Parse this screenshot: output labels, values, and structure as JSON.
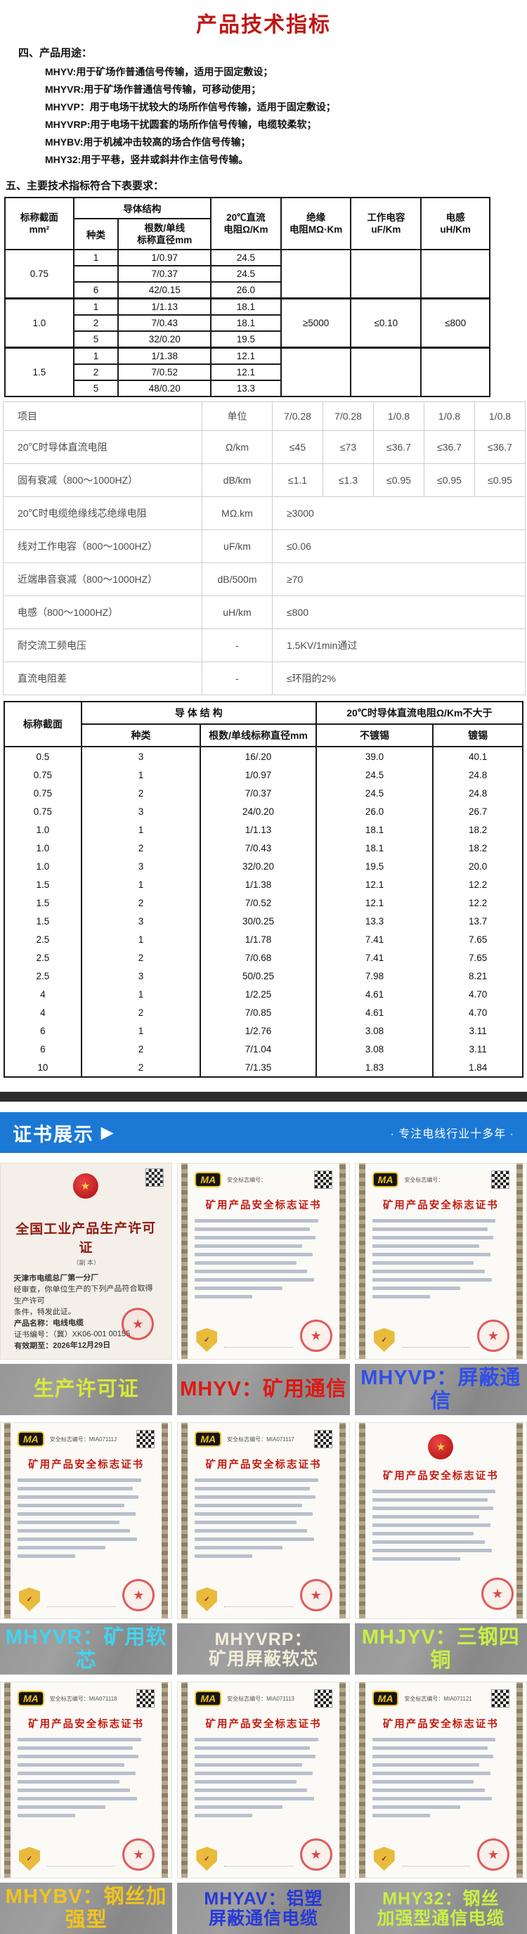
{
  "colors": {
    "title_red": "#c01715",
    "banner_blue": "#1b79d5",
    "dark_bar": "#2d2d2d",
    "caption_bar_gray": "#8f8f8f"
  },
  "header": {
    "title": "产品技术指标"
  },
  "usage": {
    "label": "四、产品用途：",
    "items": [
      "MHYV:用于矿场作普通信号传输，适用于固定敷设；",
      "MHYVR:用于矿场作普通信号传输，可移动使用；",
      "MHYVP：用于电场干扰较大的场所作信号传输，适用于固定敷设；",
      "MHYVRP:用于电场干扰圆套的场所作信号传输，电缆较柔软；",
      "MHYBV:用于机械冲击较高的场合作信号传输；",
      "MHY32:用于平巷，竖井或斜井作主信号传输。"
    ]
  },
  "spec": {
    "label": "五、主要技术指标符合下表要求："
  },
  "table1": {
    "header": {
      "nominal1": "标称截面",
      "nominal2": "mm²",
      "conductor": "导体结构",
      "type": "种类",
      "strand1": "根数/单线",
      "strand2": "标称直径mm",
      "dc1": "20℃直流",
      "dc2": "电阻Ω/Km",
      "ins1": "绝缘",
      "ins2": "电阻MΩ·Km",
      "cap1": "工作电容",
      "cap2": "uF/Km",
      "ind1": "电感",
      "ind2": "uH/Km"
    },
    "groups": [
      {
        "nominal": "0.75",
        "rows": [
          [
            "1",
            "1/0.97",
            "24.5"
          ],
          [
            "",
            "7/0.37",
            "24.5"
          ],
          [
            "6",
            "42/0.15",
            "26.0"
          ]
        ],
        "extras": [
          "",
          "",
          ""
        ]
      },
      {
        "nominal": "1.0",
        "rows": [
          [
            "1",
            "1/1.13",
            "18.1"
          ],
          [
            "2",
            "7/0.43",
            "18.1"
          ],
          [
            "5",
            "32/0.20",
            "19.5"
          ]
        ],
        "extras": [
          "≥5000",
          "≤0.10",
          "≤800"
        ]
      },
      {
        "nominal": "1.5",
        "rows": [
          [
            "1",
            "1/1.38",
            "12.1"
          ],
          [
            "2",
            "7/0.52",
            "12.1"
          ],
          [
            "5",
            "48/0.20",
            "13.3"
          ]
        ],
        "extras": [
          "",
          "",
          ""
        ]
      }
    ]
  },
  "table2": {
    "item_col": "项目",
    "unit_col": "单位",
    "spec_cols": [
      "7/0.28",
      "7/0.28",
      "1/0.8",
      "1/0.8",
      "1/0.8"
    ],
    "rows": [
      {
        "item": "20℃时导体直流电阻",
        "unit": "Ω/km",
        "values": [
          "≤45",
          "≤73",
          "≤36.7",
          "≤36.7",
          "≤36.7"
        ]
      },
      {
        "item": "固有衰减（800～1000HZ）",
        "unit": "dB/km",
        "values": [
          "≤1.1",
          "≤1.3",
          "≤0.95",
          "≤0.95",
          "≤0.95"
        ]
      },
      {
        "item": "20℃时电缆绝缘线芯绝缘电阻",
        "unit": "MΩ.km",
        "span": "≥3000"
      },
      {
        "item": "线对工作电容（800～1000HZ）",
        "unit": "uF/km",
        "span": "≤0.06"
      },
      {
        "item": "近端串音衰减（800～1000HZ）",
        "unit": "dB/500m",
        "span": "≥70"
      },
      {
        "item": "电感（800～1000HZ）",
        "unit": "uH/km",
        "span": "≤800"
      },
      {
        "item": "耐交流工频电压",
        "unit": "-",
        "span": "1.5KV/1min通过"
      },
      {
        "item": "直流电阻差",
        "unit": "-",
        "span": "≤环阻的2%"
      }
    ]
  },
  "table3": {
    "header": {
      "nominal": "标称截面",
      "conductor": "导 体 结 构",
      "type": "种类",
      "strand": "根数/单线标称直径mm",
      "dc": "20℃时导体直流电阻Ω/Km不大于",
      "untinned": "不镀锡",
      "tinned": "镀锡"
    },
    "rows": [
      [
        "0.5",
        "3",
        "16/.20",
        "39.0",
        "40.1"
      ],
      [
        "0.75",
        "1",
        "1/0.97",
        "24.5",
        "24.8"
      ],
      [
        "0.75",
        "2",
        "7/0.37",
        "24.5",
        "24.8"
      ],
      [
        "0.75",
        "3",
        "24/0.20",
        "26.0",
        "26.7"
      ],
      [
        "1.0",
        "1",
        "1/1.13",
        "18.1",
        "18.2"
      ],
      [
        "1.0",
        "2",
        "7/0.43",
        "18.1",
        "18.2"
      ],
      [
        "1.0",
        "3",
        "32/0.20",
        "19.5",
        "20.0"
      ],
      [
        "1.5",
        "1",
        "1/1.38",
        "12.1",
        "12.2"
      ],
      [
        "1.5",
        "2",
        "7/0.52",
        "12.1",
        "12.2"
      ],
      [
        "1.5",
        "3",
        "30/0.25",
        "13.3",
        "13.7"
      ],
      [
        "2.5",
        "1",
        "1/1.78",
        "7.41",
        "7.65"
      ],
      [
        "2.5",
        "2",
        "7/0.68",
        "7.41",
        "7.65"
      ],
      [
        "2.5",
        "3",
        "50/0.25",
        "7.98",
        "8.21"
      ],
      [
        "4",
        "1",
        "1/2.25",
        "4.61",
        "4.70"
      ],
      [
        "4",
        "2",
        "7/0.85",
        "4.61",
        "4.70"
      ],
      [
        "6",
        "1",
        "1/2.76",
        "3.08",
        "3.11"
      ],
      [
        "6",
        "2",
        "7/1.04",
        "3.08",
        "3.11"
      ],
      [
        "10",
        "2",
        "7/1.35",
        "1.83",
        "1.84"
      ]
    ]
  },
  "banner": {
    "title": "证书展示",
    "arrow": "▶",
    "tagline": "· 专注电线行业十多年 ·"
  },
  "certificates": {
    "ma_logo": "MA",
    "ma_title": "矿用产品安全标志证书",
    "cert_no_label": "安全标志编号：",
    "license": {
      "title": "全国工业产品生产许可证",
      "subtitle": "（副 本）",
      "company": "天津市电缆总厂第一分厂",
      "body1": "经审查，你单位生产的下列产品符合取得生产许可",
      "body2": "条件，特发此证。",
      "product": "产品名称：电线电缆",
      "cert_no": "证书编号：（冀）XK06-001 00155",
      "valid": "有效期至：2026年12月29日"
    },
    "items": [
      {
        "style": "license",
        "cert_no": "",
        "caption_lines": [
          "生产许可证"
        ],
        "caption_color": "#d8e93a"
      },
      {
        "style": "ma",
        "cert_no": "",
        "caption_lines": [
          "MHYV：矿用通信"
        ],
        "caption_color": "#e01712"
      },
      {
        "style": "ma",
        "cert_no": "",
        "caption_lines": [
          "MHYVP：屏蔽通信"
        ],
        "caption_color": "#2f4fe8"
      },
      {
        "style": "ma",
        "cert_no": "MIA07111J",
        "caption_lines": [
          "MHYVR：矿用软芯"
        ],
        "caption_color": "#41d4f2"
      },
      {
        "style": "ma",
        "cert_no": "MIA071117",
        "caption_lines": [
          "MHYVRP：",
          "矿用屏蔽软芯"
        ],
        "caption_color": "#f2edda"
      },
      {
        "style": "ma-alt",
        "cert_no": "",
        "caption_lines": [
          "MHJYV：三钢四铜"
        ],
        "caption_color": "#c9ef46"
      },
      {
        "style": "ma",
        "cert_no": "MIA071118",
        "caption_lines": [
          "MHYBV：钢丝加强型"
        ],
        "caption_color": "#f2c41d"
      },
      {
        "style": "ma",
        "cert_no": "MIA071113",
        "caption_lines": [
          "MHYAV：铝塑",
          "屏蔽通信电缆"
        ],
        "caption_color": "#2738d8"
      },
      {
        "style": "ma",
        "cert_no": "MIA071121",
        "caption_lines": [
          "MHY32：钢丝",
          "加强型通信电缆"
        ],
        "caption_color": "#c9ef46"
      }
    ]
  }
}
